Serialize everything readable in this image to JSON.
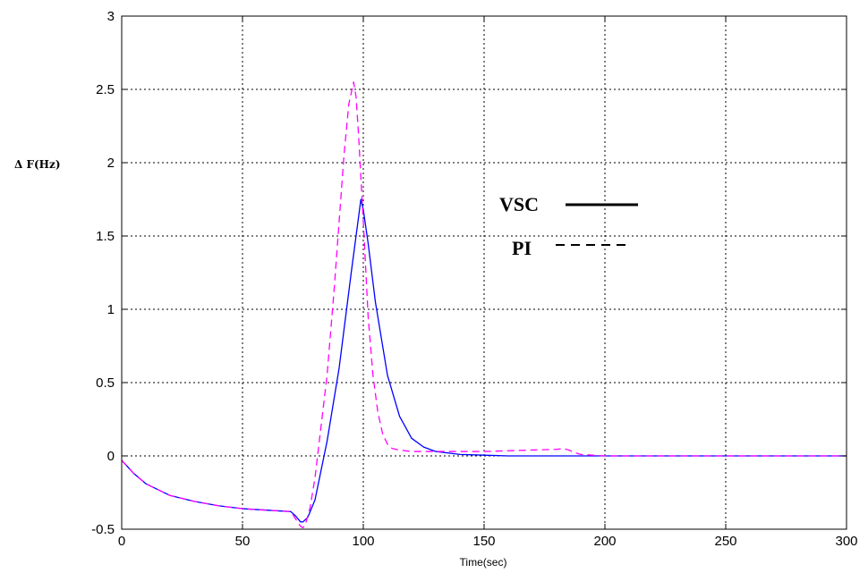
{
  "chart_data": {
    "type": "line",
    "title": "",
    "xlabel": "Time(sec)",
    "ylabel": "Δ F(Hz)",
    "xlim": [
      0,
      300
    ],
    "ylim": [
      -0.5,
      3
    ],
    "xticks": [
      0,
      50,
      100,
      150,
      200,
      250,
      300
    ],
    "yticks": [
      -0.5,
      0,
      0.5,
      1,
      1.5,
      2,
      2.5,
      3
    ],
    "xtick_labels": [
      "0",
      "50",
      "100",
      "150",
      "200",
      "250",
      "300"
    ],
    "ytick_labels": [
      "-0.5",
      "0",
      "0.5",
      "1",
      "1.5",
      "2",
      "2.5",
      "3"
    ],
    "grid": true,
    "legend_position": "center-right",
    "series": [
      {
        "name": "VSC",
        "legend_style": "solid",
        "color": "#0000ff",
        "dash": "solid",
        "x": [
          0,
          5,
          10,
          20,
          30,
          40,
          50,
          60,
          70,
          72,
          74,
          75,
          77,
          80,
          85,
          90,
          95,
          97,
          99,
          100,
          102,
          105,
          110,
          115,
          120,
          125,
          130,
          140,
          150,
          160,
          170,
          180,
          190,
          200,
          250,
          300
        ],
        "y": [
          -0.03,
          -0.12,
          -0.19,
          -0.27,
          -0.31,
          -0.34,
          -0.36,
          -0.37,
          -0.38,
          -0.41,
          -0.45,
          -0.45,
          -0.42,
          -0.3,
          0.1,
          0.6,
          1.25,
          1.5,
          1.75,
          1.68,
          1.45,
          1.05,
          0.55,
          0.27,
          0.12,
          0.06,
          0.03,
          0.01,
          0.005,
          0.0,
          0.0,
          0.0,
          0.0,
          0.0,
          0.0,
          0.0
        ]
      },
      {
        "name": "PI",
        "legend_style": "dashed",
        "color": "#ff00ff",
        "dash": "dashed",
        "x": [
          0,
          5,
          10,
          20,
          30,
          40,
          50,
          60,
          70,
          72,
          74,
          75,
          76,
          78,
          80,
          85,
          88,
          90,
          92,
          94,
          96,
          97,
          98,
          100,
          102,
          104,
          106,
          108,
          110,
          112,
          115,
          120,
          130,
          140,
          150,
          160,
          170,
          180,
          183,
          185,
          188,
          190,
          195,
          200,
          250,
          300
        ],
        "y": [
          -0.03,
          -0.12,
          -0.19,
          -0.27,
          -0.31,
          -0.34,
          -0.36,
          -0.37,
          -0.38,
          -0.43,
          -0.48,
          -0.49,
          -0.47,
          -0.35,
          -0.15,
          0.55,
          1.15,
          1.6,
          2.05,
          2.4,
          2.55,
          2.45,
          2.2,
          1.6,
          0.95,
          0.55,
          0.3,
          0.15,
          0.08,
          0.05,
          0.04,
          0.03,
          0.03,
          0.03,
          0.03,
          0.035,
          0.04,
          0.045,
          0.05,
          0.04,
          0.02,
          0.01,
          0.005,
          0.0,
          0.0,
          0.0
        ]
      }
    ]
  }
}
